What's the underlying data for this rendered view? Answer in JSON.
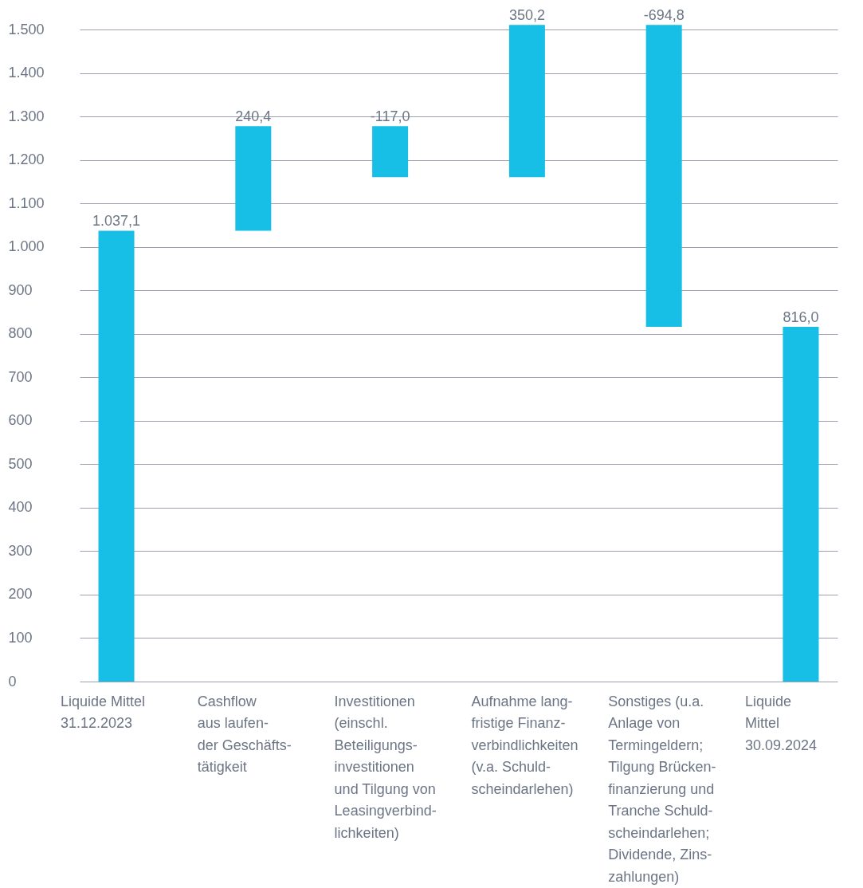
{
  "chart_data": {
    "type": "bar",
    "categories": [
      "Liquide Mittel\n31.12.2023",
      "Cashflow\naus laufen-\nder Geschäfts-\ntätigkeit",
      "Investitionen\n(einschl.\nBeteiligungs-\ninvestitionen\nund Tilgung von\nLeasingverbind-\nlichkeiten)",
      "Aufnahme lang-\nfristige Finanz-\nverbindlichkeiten\n(v.a. Schuld-\nscheindarlehen)",
      "Sonstiges (u.a.\nAnlage von\nTermingeldern;\nTilgung Brücken-\nfinanzierung und\nTranche Schuld-\nscheindarlehen;\nDividende, Zins-\nzahlungen)",
      "Liquide\nMittel\n30.09.2024"
    ],
    "values": [
      1037.1,
      240.4,
      -117.0,
      350.2,
      -694.8,
      816.0
    ],
    "base": [
      0,
      1037.1,
      1277.5,
      1160.5,
      1510.7,
      0
    ],
    "value_labels": [
      "1.037,1",
      "240,4",
      "-117,0",
      "350,2",
      "-694,8",
      "816,0"
    ],
    "color": "#17bfe7",
    "ylim": [
      0,
      1500
    ],
    "yticks": [
      0,
      100,
      200,
      300,
      400,
      500,
      600,
      700,
      800,
      900,
      {
        "value": 1000,
        "label": "1.000"
      },
      {
        "value": 1100,
        "label": "1.100"
      },
      {
        "value": 1200,
        "label": "1.200"
      },
      {
        "value": 1300,
        "label": "1.300"
      },
      {
        "value": 1400,
        "label": "1.400"
      },
      {
        "value": 1500,
        "label": "1.500"
      }
    ],
    "grid": "y"
  }
}
